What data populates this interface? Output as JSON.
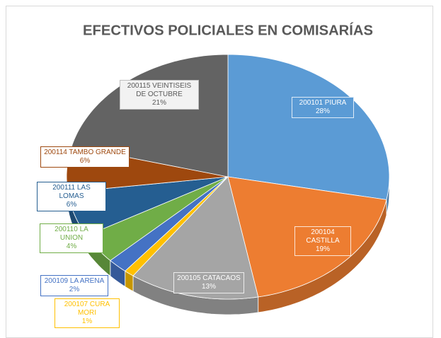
{
  "chart_data": {
    "type": "pie3d",
    "title": "EFECTIVOS POLICIALES EN COMISARÍAS",
    "categories": [
      "200101 PIURA",
      "200104 CASTILLA",
      "200105 CATACAOS",
      "200107 CURA MORI",
      "200109 LA ARENA",
      "200110 LA UNION",
      "200111 LAS LOMAS",
      "200114 TAMBO GRANDE",
      "200115 VEINTISEIS DE OCTUBRE"
    ],
    "values": [
      28,
      19,
      13,
      1,
      2,
      4,
      6,
      6,
      21
    ],
    "value_labels": [
      "28%",
      "19%",
      "13%",
      "1%",
      "2%",
      "4%",
      "6%",
      "6%",
      "21%"
    ],
    "colors": [
      "#5b9bd5",
      "#ed7d31",
      "#a5a5a5",
      "#ffc000",
      "#4472c4",
      "#70ad47",
      "#255e91",
      "#9e480e",
      "#636363"
    ]
  }
}
